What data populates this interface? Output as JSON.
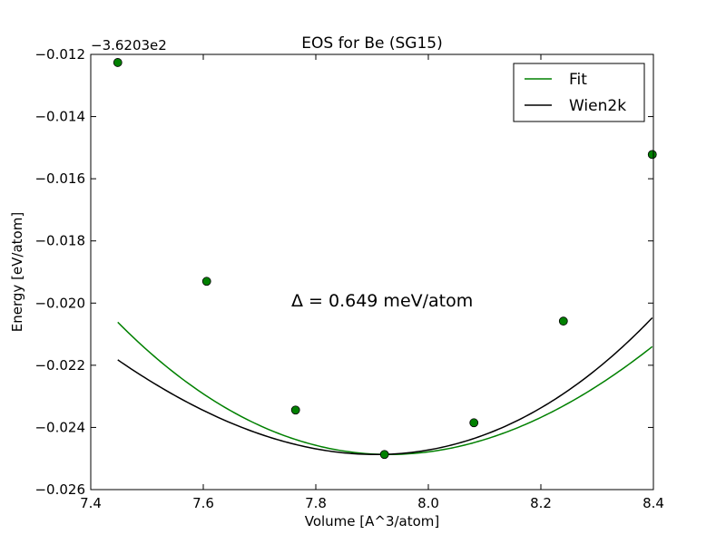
{
  "chart_data": {
    "type": "line",
    "title": "EOS for Be (SG15)",
    "xlabel": "Volume [A^3/atom]",
    "ylabel": "Energy [eV/atom]",
    "y_offset_label": "−3.6203e2",
    "xlim": [
      7.4,
      8.4
    ],
    "ylim": [
      -0.026,
      -0.012
    ],
    "x_ticks": [
      7.4,
      7.6,
      7.8,
      8.0,
      8.2,
      8.4
    ],
    "x_tick_labels": [
      "7.4",
      "7.6",
      "7.8",
      "8.0",
      "8.2",
      "8.4"
    ],
    "y_ticks": [
      -0.026,
      -0.024,
      -0.022,
      -0.02,
      -0.018,
      -0.016,
      -0.014,
      -0.012
    ],
    "y_tick_labels": [
      "−0.026",
      "−0.024",
      "−0.022",
      "−0.020",
      "−0.018",
      "−0.016",
      "−0.014",
      "−0.012"
    ],
    "grid": false,
    "legend_position": "top-right",
    "annotation": "Δ = 0.649 meV/atom",
    "series": [
      {
        "name": "Fit",
        "color": "#008000",
        "curve": {
          "e0": -0.02487,
          "v0": 7.93,
          "b0": 0.01706,
          "b1": -0.0026,
          "x_range": [
            7.448,
            8.398
          ]
        }
      },
      {
        "name": "Wien2k",
        "color": "#000000",
        "curve": {
          "e0": -0.02487,
          "v0": 7.907,
          "b0": 0.01628,
          "b1": 0.004,
          "x_range": [
            7.448,
            8.398
          ]
        }
      }
    ],
    "points": {
      "color": "#008000",
      "x": [
        7.448,
        7.606,
        7.764,
        7.922,
        8.081,
        8.24,
        8.398
      ],
      "y": [
        -0.01226,
        -0.0193,
        -0.02344,
        -0.02487,
        -0.02385,
        -0.02058,
        -0.01522
      ]
    }
  }
}
